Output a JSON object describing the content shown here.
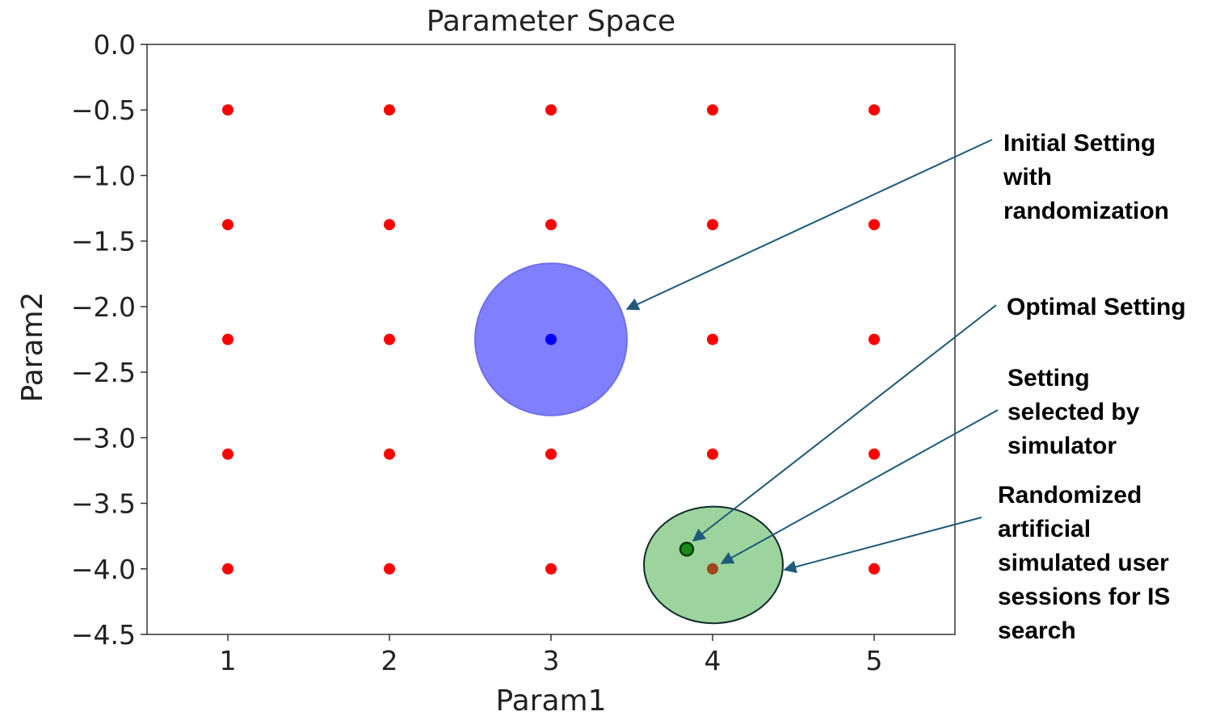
{
  "chart_data": {
    "type": "scatter",
    "title": "Parameter Space",
    "x_label": "Param1",
    "y_label": "Param2",
    "xlim": [
      0.5,
      5.5
    ],
    "ylim": [
      -4.5,
      0
    ],
    "xticks": [
      1,
      2,
      3,
      4,
      5
    ],
    "yticks": [
      {
        "value": 0,
        "label": "0.0"
      },
      {
        "value": -0.5,
        "label": "−0.5"
      },
      {
        "value": -1,
        "label": "−1.0"
      },
      {
        "value": -1.5,
        "label": "−1.5"
      },
      {
        "value": -2,
        "label": "−2.0"
      },
      {
        "value": -2.5,
        "label": "−2.5"
      },
      {
        "value": -3,
        "label": "−3.0"
      },
      {
        "value": -3.5,
        "label": "−3.5"
      },
      {
        "value": -4,
        "label": "−4.0"
      },
      {
        "value": -4.5,
        "label": "−4.5"
      }
    ],
    "regions": [
      {
        "x": 3,
        "y": -2.25,
        "width": 0.94,
        "height": 1.16,
        "color": "#8080ff",
        "edge": "#6f6fe8"
      },
      {
        "x": 4.005,
        "y": -3.97,
        "width": 0.86,
        "height": 0.89,
        "color": "#9dd49d",
        "edge": "#102a2a"
      }
    ],
    "series": [
      {
        "color": "#ff0000",
        "size": 7,
        "x": [
          1,
          2,
          3,
          4,
          5,
          1,
          2,
          3,
          4,
          5,
          1,
          2,
          4,
          5,
          1,
          2,
          3,
          4,
          5,
          1,
          2,
          3,
          5
        ],
        "values": [
          -0.5,
          -0.5,
          -0.5,
          -0.5,
          -0.5,
          -1.375,
          -1.375,
          -1.375,
          -1.375,
          -1.375,
          -2.25,
          -2.25,
          -2.25,
          -2.25,
          -3.125,
          -3.125,
          -3.125,
          -3.125,
          -3.125,
          -4,
          -4,
          -4,
          -4
        ]
      },
      {
        "color": "#0000ff",
        "size": 7,
        "x": [
          3
        ],
        "values": [
          -2.25
        ]
      },
      {
        "color": "#a0471f",
        "size": 7,
        "x": [
          4
        ],
        "values": [
          -4
        ]
      },
      {
        "color": "#1a8a1a",
        "edge": "#0b3b0b",
        "size": 8,
        "x": [
          3.84
        ],
        "values": [
          -3.85
        ]
      }
    ],
    "annotations": [
      {
        "lines": [
          "Initial Setting",
          "with",
          "randomization"
        ]
      },
      {
        "lines": [
          "Optimal Setting"
        ]
      },
      {
        "lines": [
          "Setting",
          "selected by",
          "simulator"
        ]
      },
      {
        "lines": [
          "Randomized",
          "artificial",
          "simulated user",
          "sessions for IS",
          "search"
        ]
      }
    ]
  }
}
